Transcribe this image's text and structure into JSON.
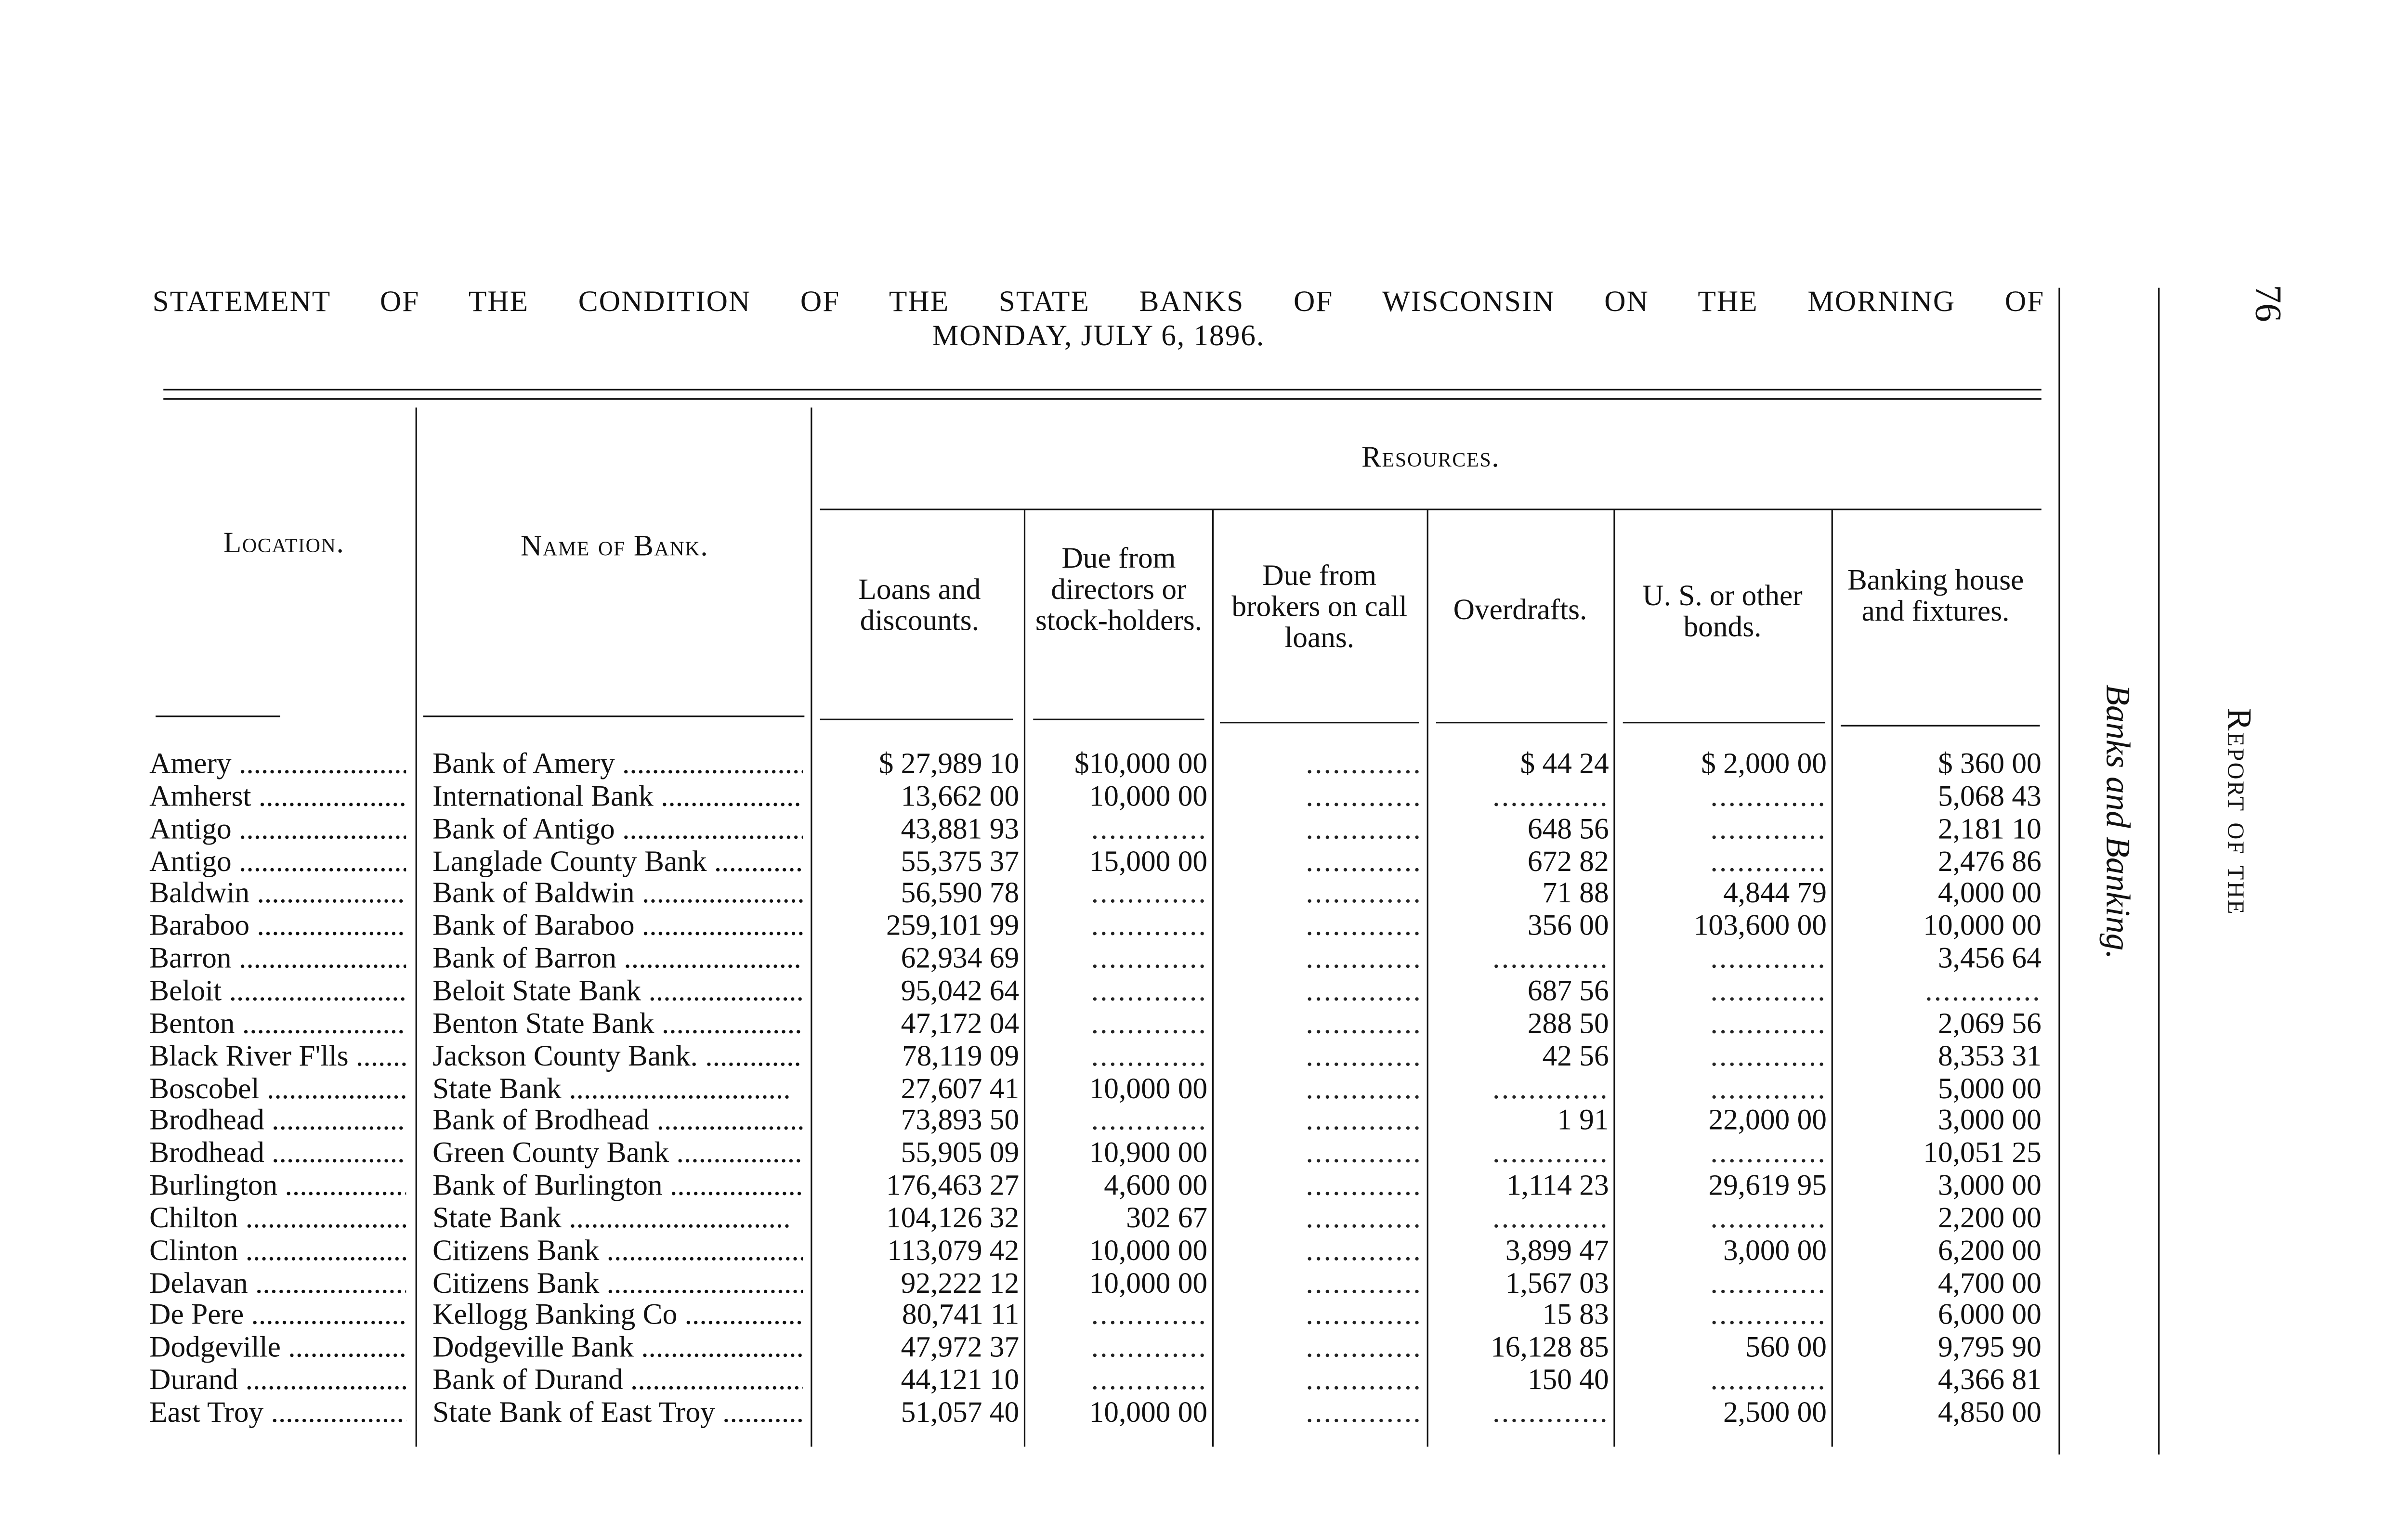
{
  "page_number": "76",
  "running_head": "Report of the",
  "side_title": "Banks and Banking.",
  "title_line1": "STATEMENT OF THE CONDITION OF THE STATE BANKS OF WISCONSIN ON THE MORNING OF",
  "title_line2": "MONDAY, JULY 6, 1896.",
  "resources_header": "Resources.",
  "columns": {
    "location": "Location.",
    "name": "Name of Bank.",
    "loans": "Loans and discounts.",
    "directors": "Due from directors or stock-holders.",
    "brokers": "Due from brokers on call loans.",
    "overdrafts": "Overdrafts.",
    "bonds": "U. S. or other bonds.",
    "banking_house": "Banking house and fixtures."
  },
  "rows": [
    {
      "location": "Amery",
      "name": "Bank of Amery",
      "loans": "$ 27,989 10",
      "directors": "$10,000 00",
      "brokers": "",
      "overdrafts": "$    44 24",
      "bonds": "$  2,000 00",
      "banking_house": "$    360 00"
    },
    {
      "location": "Amherst",
      "name": "International Bank",
      "loans": "13,662 00",
      "directors": "10,000 00",
      "brokers": "",
      "overdrafts": "",
      "bonds": "",
      "banking_house": "5,068 43"
    },
    {
      "location": "Antigo",
      "name": "Bank of Antigo",
      "loans": "43,881 93",
      "directors": "",
      "brokers": "",
      "overdrafts": "648 56",
      "bonds": "",
      "banking_house": "2,181 10"
    },
    {
      "location": "Antigo",
      "name": "Langlade County Bank",
      "loans": "55,375 37",
      "directors": "15,000 00",
      "brokers": "",
      "overdrafts": "672 82",
      "bonds": "",
      "banking_house": "2,476 86"
    },
    {
      "location": "Baldwin",
      "name": "Bank of Baldwin",
      "loans": "56,590 78",
      "directors": "",
      "brokers": "",
      "overdrafts": "71 88",
      "bonds": "4,844 79",
      "banking_house": "4,000 00"
    },
    {
      "location": "Baraboo",
      "name": "Bank of Baraboo",
      "loans": "259,101 99",
      "directors": "",
      "brokers": "",
      "overdrafts": "356 00",
      "bonds": "103,600 00",
      "banking_house": "10,000 00"
    },
    {
      "location": "Barron",
      "name": "Bank of Barron",
      "loans": "62,934 69",
      "directors": "",
      "brokers": "",
      "overdrafts": "",
      "bonds": "",
      "banking_house": "3,456 64"
    },
    {
      "location": "Beloit",
      "name": "Beloit State Bank",
      "loans": "95,042 64",
      "directors": "",
      "brokers": "",
      "overdrafts": "687 56",
      "bonds": "",
      "banking_house": ""
    },
    {
      "location": "Benton",
      "name": "Benton State Bank",
      "loans": "47,172 04",
      "directors": "",
      "brokers": "",
      "overdrafts": "288 50",
      "bonds": "",
      "banking_house": "2,069 56"
    },
    {
      "location": "Black River F'lls",
      "name": "Jackson County Bank.",
      "loans": "78,119 09",
      "directors": "",
      "brokers": "",
      "overdrafts": "42 56",
      "bonds": "",
      "banking_house": "8,353 31"
    },
    {
      "location": "Boscobel",
      "name": "State Bank",
      "loans": "27,607 41",
      "directors": "10,000 00",
      "brokers": "",
      "overdrafts": "",
      "bonds": "",
      "banking_house": "5,000 00"
    },
    {
      "location": "Brodhead",
      "name": "Bank of Brodhead",
      "loans": "73,893 50",
      "directors": "",
      "brokers": "",
      "overdrafts": "1 91",
      "bonds": "22,000 00",
      "banking_house": "3,000 00"
    },
    {
      "location": "Brodhead",
      "name": "Green County Bank",
      "loans": "55,905 09",
      "directors": "10,900 00",
      "brokers": "",
      "overdrafts": "",
      "bonds": "",
      "banking_house": "10,051 25"
    },
    {
      "location": "Burlington",
      "name": "Bank of Burlington",
      "loans": "176,463 27",
      "directors": "4,600 00",
      "brokers": "",
      "overdrafts": "1,114 23",
      "bonds": "29,619 95",
      "banking_house": "3,000 00"
    },
    {
      "location": "Chilton",
      "name": "State Bank",
      "loans": "104,126 32",
      "directors": "302 67",
      "brokers": "",
      "overdrafts": "",
      "bonds": "",
      "banking_house": "2,200 00"
    },
    {
      "location": "Clinton",
      "name": "Citizens Bank",
      "loans": "113,079 42",
      "directors": "10,000 00",
      "brokers": "",
      "overdrafts": "3,899 47",
      "bonds": "3,000 00",
      "banking_house": "6,200 00"
    },
    {
      "location": "Delavan",
      "name": "Citizens Bank",
      "loans": "92,222 12",
      "directors": "10,000 00",
      "brokers": "",
      "overdrafts": "1,567 03",
      "bonds": "",
      "banking_house": "4,700 00"
    },
    {
      "location": "De Pere",
      "name": "Kellogg Banking Co",
      "loans": "80,741 11",
      "directors": "",
      "brokers": "",
      "overdrafts": "15 83",
      "bonds": "",
      "banking_house": "6,000 00"
    },
    {
      "location": "Dodgeville",
      "name": "Dodgeville Bank",
      "loans": "47,972 37",
      "directors": "",
      "brokers": "",
      "overdrafts": "16,128 85",
      "bonds": "560 00",
      "banking_house": "9,795 90"
    },
    {
      "location": "Durand",
      "name": "Bank of Durand",
      "loans": "44,121 10",
      "directors": "",
      "brokers": "",
      "overdrafts": "150 40",
      "bonds": "",
      "banking_house": "4,366 81"
    },
    {
      "location": "East Troy",
      "name": "State Bank of East Troy",
      "loans": "51,057 40",
      "directors": "10,000 00",
      "brokers": "",
      "overdrafts": "",
      "bonds": "2,500 00",
      "banking_house": "4,850 00"
    }
  ]
}
